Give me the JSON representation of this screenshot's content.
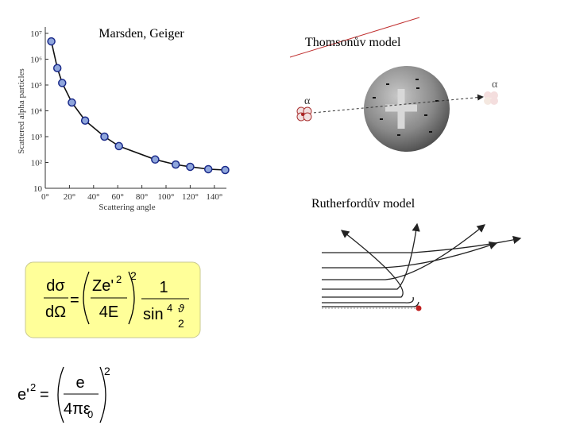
{
  "chart_data": {
    "type": "scatter",
    "title": "Marsden, Geiger",
    "x_label": "Scattering angle",
    "y_label": "Scattered alpha particles",
    "y_scale": "log",
    "grid": false,
    "connect_points": true,
    "x": [
      5,
      10,
      14,
      22,
      33,
      49,
      61,
      91,
      108,
      120,
      135,
      149
    ],
    "series": [
      {
        "name": "Scattered alpha particles",
        "color": "#1a2a8a",
        "values": [
          4900000,
          450000,
          120000,
          21000,
          4200,
          1000,
          430,
          130,
          83,
          68,
          55,
          51
        ]
      }
    ],
    "xlim": [
      0,
      150
    ],
    "ylim": [
      10,
      10000000
    ],
    "xticks": [
      {
        "value": 0,
        "label": "0°"
      },
      {
        "value": 20,
        "label": "20°"
      },
      {
        "value": 40,
        "label": "40°"
      },
      {
        "value": 60,
        "label": "60°"
      },
      {
        "value": 80,
        "label": "80°"
      },
      {
        "value": 100,
        "label": "100°"
      },
      {
        "value": 120,
        "label": "120°"
      },
      {
        "value": 140,
        "label": "140°"
      }
    ],
    "yticks": [
      10,
      {
        "value": 100,
        "label": "10²"
      },
      {
        "value": 1000,
        "label": "10³"
      },
      {
        "value": 10000,
        "label": "10⁴"
      },
      {
        "value": 100000,
        "label": "10⁵"
      },
      {
        "value": 1000000,
        "label": "10⁶"
      },
      {
        "value": 10000000,
        "label": "10⁷"
      }
    ]
  },
  "thomson": {
    "title": "Thomsonův model",
    "alpha_in": "α",
    "alpha_out": "α"
  },
  "rutherford": {
    "title": "Rutherfordův model"
  },
  "formula_1": {
    "num_left": "dσ",
    "den_left": "dΩ",
    "equals": "=",
    "num": "Ze'",
    "num_exp": "2",
    "den": "4E",
    "power": "2",
    "one": "1",
    "sin": "sin",
    "sin_exp": "4",
    "theta": "ϑ",
    "half": "2"
  },
  "formula_2": {
    "lhs": "e'",
    "lhs_exp": "2",
    "equals": "=",
    "num": "e",
    "den": "4πε",
    "den_sub": "0",
    "power": "2"
  }
}
